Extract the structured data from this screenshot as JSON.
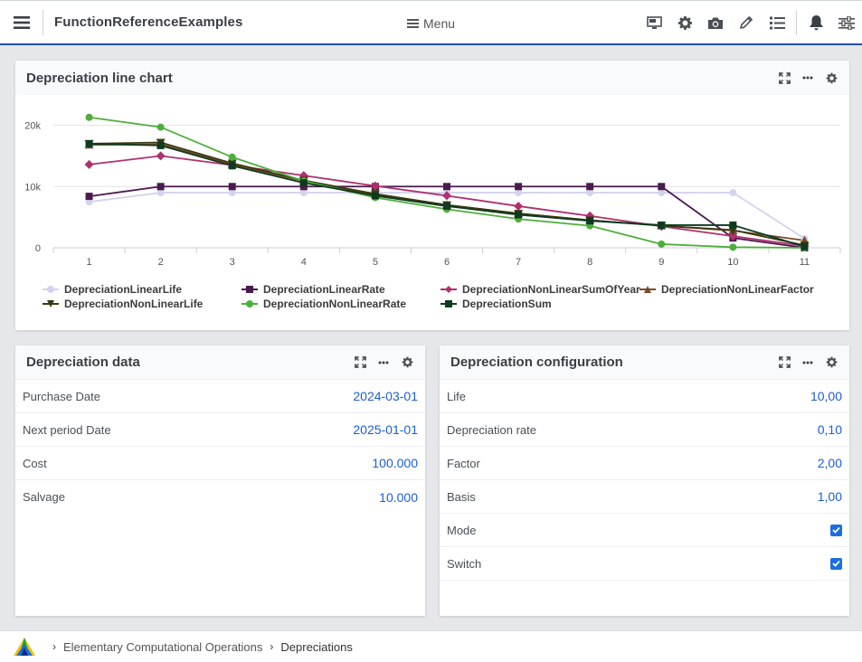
{
  "app": {
    "title": "FunctionReferenceExamples",
    "menu_label": "Menu"
  },
  "chart_panel": {
    "title": "Depreciation line chart"
  },
  "chart_data": {
    "type": "line",
    "x": [
      1,
      2,
      3,
      4,
      5,
      6,
      7,
      8,
      9,
      10,
      11
    ],
    "ylim": [
      0,
      22000
    ],
    "yticks": [
      0,
      10000,
      20000
    ],
    "ytick_labels": [
      "0",
      "10k",
      "20k"
    ],
    "xtick_labels": [
      "1",
      "2",
      "3",
      "4",
      "5",
      "6",
      "7",
      "8",
      "9",
      "10",
      "11"
    ],
    "grid": true,
    "legend_position": "bottom",
    "series": [
      {
        "name": "DepreciationLinearLife",
        "color": "#d3d3ee",
        "marker": "circle",
        "values": [
          7500,
          9000,
          9000,
          9000,
          9000,
          9000,
          9000,
          9000,
          9000,
          9000,
          1500
        ]
      },
      {
        "name": "DepreciationLinearRate",
        "color": "#4a1a4f",
        "marker": "square",
        "values": [
          8400,
          10000,
          10000,
          10000,
          10000,
          10000,
          10000,
          10000,
          10000,
          1600,
          0
        ]
      },
      {
        "name": "DepreciationNonLinearSumOfYear",
        "color": "#b0306e",
        "marker": "diamond",
        "values": [
          13600,
          15000,
          13500,
          11800,
          10100,
          8500,
          6800,
          5200,
          3500,
          1900,
          300
        ]
      },
      {
        "name": "DepreciationNonLinearFactor",
        "color": "#7a4a2a",
        "marker": "triangle",
        "values": [
          16800,
          16900,
          13600,
          10900,
          8700,
          7000,
          5600,
          4500,
          3600,
          2800,
          1200
        ]
      },
      {
        "name": "DepreciationNonLinearLife",
        "color": "#3a3a10",
        "marker": "triangle-down",
        "values": [
          17000,
          17200,
          13800,
          11000,
          8800,
          7000,
          5600,
          4500,
          3600,
          2900,
          400
        ]
      },
      {
        "name": "DepreciationNonLinearRate",
        "color": "#4caf3a",
        "marker": "circle",
        "values": [
          21300,
          19700,
          14800,
          10900,
          8200,
          6300,
          4700,
          3600,
          600,
          100,
          0
        ]
      },
      {
        "name": "DepreciationSum",
        "color": "#0e3a20",
        "marker": "square",
        "values": [
          17000,
          16700,
          13400,
          10600,
          8500,
          6800,
          5400,
          4400,
          3700,
          3700,
          200
        ]
      }
    ]
  },
  "data_panel": {
    "title": "Depreciation data",
    "rows": [
      {
        "label": "Purchase Date",
        "value": "2024-03-01"
      },
      {
        "label": "Next period Date",
        "value": "2025-01-01"
      },
      {
        "label": "Cost",
        "value": "100.000"
      },
      {
        "label": "Salvage",
        "value": "10.000"
      }
    ]
  },
  "config_panel": {
    "title": "Depreciation configuration",
    "rows": [
      {
        "label": "Life",
        "value": "10,00"
      },
      {
        "label": "Depreciation rate",
        "value": "0,10"
      },
      {
        "label": "Factor",
        "value": "2,00"
      },
      {
        "label": "Basis",
        "value": "1,00"
      },
      {
        "label": "Mode",
        "checked": true
      },
      {
        "label": "Switch",
        "checked": true
      }
    ]
  },
  "breadcrumb": {
    "items": [
      "Elementary Computational Operations",
      "Depreciations"
    ]
  }
}
